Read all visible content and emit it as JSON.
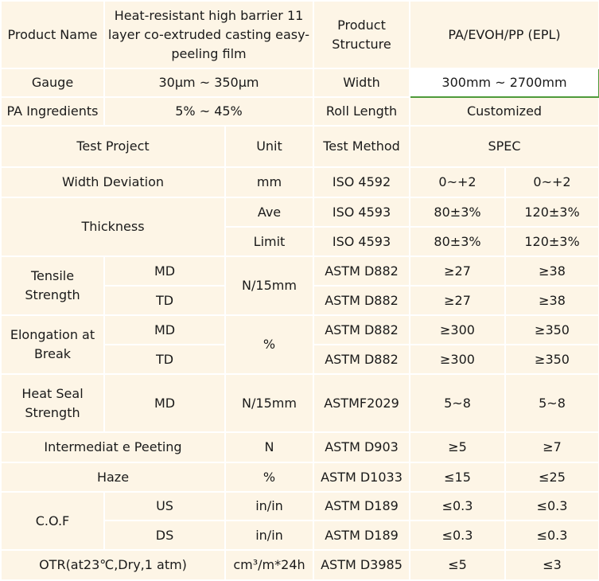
{
  "header": {
    "product_name_label": "Product Name",
    "product_name_value": "Heat-resistant high barrier 11 layer co-extruded casting easy-peeling film",
    "structure_label": "Product Structure",
    "structure_value": "PA/EVOH/PP (EPL)",
    "gauge_label": "Gauge",
    "gauge_value": "30μm ~ 350μm",
    "width_label": "Width",
    "width_value": "300mm ~ 2700mm",
    "pa_label": "PA Ingredients",
    "pa_value": "5% ~ 45%",
    "roll_label": "Roll Length",
    "roll_value": "Customized"
  },
  "columns": {
    "test_project": "Test Project",
    "unit": "Unit",
    "test_method": "Test Method",
    "spec": "SPEC"
  },
  "rows": {
    "width_deviation": {
      "name": "Width Deviation",
      "unit": "mm",
      "method": "ISO 4592",
      "spec1": "0~+2",
      "spec2": "0~+2"
    },
    "thickness": {
      "name": "Thickness",
      "ave": {
        "sub": "Ave",
        "method": "ISO 4593",
        "spec1": "80±3%",
        "spec2": "120±3%"
      },
      "limit": {
        "sub": "Limit",
        "method": "ISO 4593",
        "spec1": "80±3%",
        "spec2": "120±3%"
      }
    },
    "tensile": {
      "name": "Tensile Strength",
      "unit": "N/15mm",
      "md": {
        "sub": "MD",
        "method": "ASTM D882",
        "spec1": "≥27",
        "spec2": "≥38"
      },
      "td": {
        "sub": "TD",
        "method": "ASTM D882",
        "spec1": "≥27",
        "spec2": "≥38"
      }
    },
    "elongation": {
      "name": "Elongation at Break",
      "unit": "%",
      "md": {
        "sub": "MD",
        "method": "ASTM D882",
        "spec1": "≥300",
        "spec2": "≥350"
      },
      "td": {
        "sub": "TD",
        "method": "ASTM D882",
        "spec1": "≥300",
        "spec2": "≥350"
      }
    },
    "heat_seal": {
      "name": "Heat Seal Strength",
      "sub": "MD",
      "unit": "N/15mm",
      "method": "ASTMF2029",
      "spec1": "5~8",
      "spec2": "5~8"
    },
    "intermediate": {
      "name": "Intermediat e Peeting",
      "unit": "N",
      "method": "ASTM D903",
      "spec1": "≥5",
      "spec2": "≥7"
    },
    "haze": {
      "name": "Haze",
      "unit": "%",
      "method": "ASTM D1033",
      "spec1": "≤15",
      "spec2": "≤25"
    },
    "cof": {
      "name": "C.O.F",
      "us": {
        "sub": "US",
        "unit": "in/in",
        "method": "ASTM D189",
        "spec1": "≤0.3",
        "spec2": "≤0.3"
      },
      "ds": {
        "sub": "DS",
        "unit": "in/in",
        "method": "ASTM D189",
        "spec1": "≤0.3",
        "spec2": "≤0.3"
      }
    },
    "otr": {
      "name": "OTR(at23℃,Dry,1 atm)",
      "unit": "cm³/m*24h",
      "method": "ASTM D3985",
      "spec1": "≤5",
      "spec2": "≤3"
    }
  }
}
